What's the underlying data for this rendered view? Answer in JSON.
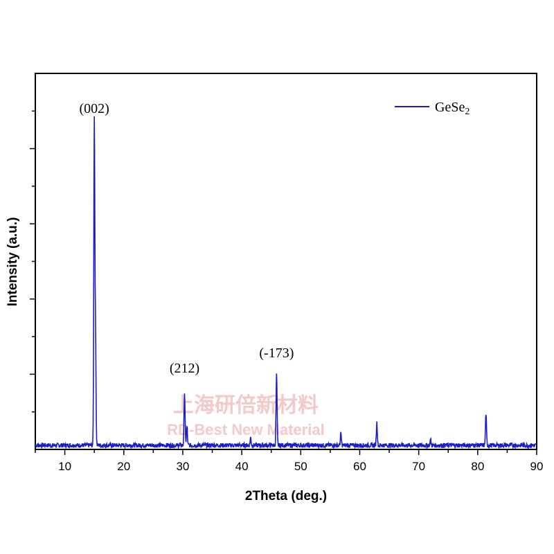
{
  "chart_data": {
    "type": "line",
    "title": "",
    "xlabel": "2Theta (deg.)",
    "ylabel": "Intensity (a.u.)",
    "xlim": [
      5,
      90
    ],
    "ylim": [
      0,
      1.0
    ],
    "xticks": [
      10,
      20,
      30,
      40,
      50,
      60,
      70,
      80,
      90
    ],
    "legend": {
      "position": "top-right"
    },
    "series": [
      {
        "name": "GeSe2",
        "color": "#1c1ccc",
        "peaks": [
          {
            "x": 15.0,
            "y": 0.86
          },
          {
            "x": 15.2,
            "y": 0.3
          },
          {
            "x": 30.3,
            "y": 0.14
          },
          {
            "x": 30.7,
            "y": 0.05
          },
          {
            "x": 41.5,
            "y": 0.02
          },
          {
            "x": 45.9,
            "y": 0.19
          },
          {
            "x": 56.8,
            "y": 0.03
          },
          {
            "x": 62.9,
            "y": 0.06
          },
          {
            "x": 72.0,
            "y": 0.015
          },
          {
            "x": 81.4,
            "y": 0.085
          }
        ],
        "baseline": 0.005
      }
    ],
    "annotations": [
      {
        "text": "(002)",
        "x": 15.0,
        "y": 0.88
      },
      {
        "text": "(212)",
        "x": 30.3,
        "y": 0.19
      },
      {
        "text": "(-173)",
        "x": 45.9,
        "y": 0.23
      }
    ]
  },
  "legend_label_main": "GeSe",
  "legend_label_sub": "2",
  "watermark": {
    "chinese": "上海研倍新材料",
    "english": "RD-Best New Material"
  }
}
